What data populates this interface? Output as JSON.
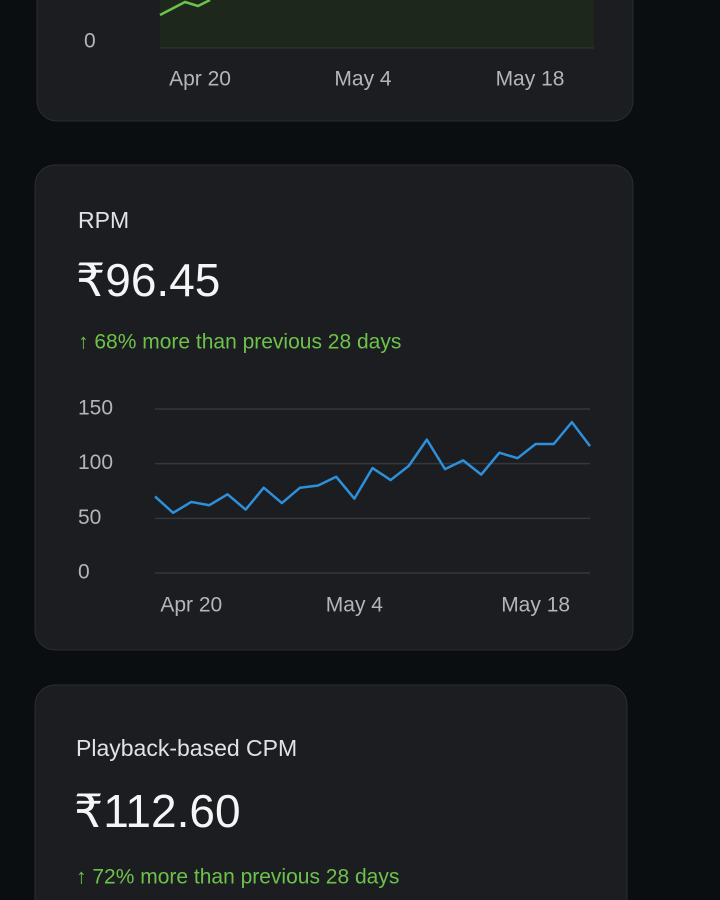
{
  "top_card": {
    "y_tick": "0",
    "x_labels": [
      "Apr 20",
      "May 4",
      "May 18"
    ]
  },
  "chart_data": {
    "type": "line",
    "title": "RPM",
    "headline": "₹96.45",
    "annotation": "↑ 68% more than previous 28 days",
    "categories": [
      null,
      null,
      "Apr 20",
      null,
      null,
      null,
      null,
      null,
      null,
      null,
      null,
      "May 4",
      null,
      null,
      null,
      null,
      null,
      null,
      null,
      null,
      null,
      "May 18",
      null,
      null,
      null
    ],
    "series": [
      {
        "name": "RPM",
        "color": "#2e8fdb",
        "values": [
          70,
          55,
          65,
          62,
          72,
          58,
          78,
          64,
          78,
          80,
          88,
          68,
          96,
          85,
          98,
          122,
          95,
          103,
          90,
          110,
          105,
          118,
          118,
          138,
          116
        ]
      }
    ],
    "ylim": [
      0,
      150
    ],
    "yticks": [
      0,
      50,
      100,
      150
    ],
    "grid": true
  },
  "cpm_card": {
    "title": "Playback-based CPM",
    "headline": "₹112.60",
    "annotation": "↑ 72% more than previous 28 days"
  }
}
